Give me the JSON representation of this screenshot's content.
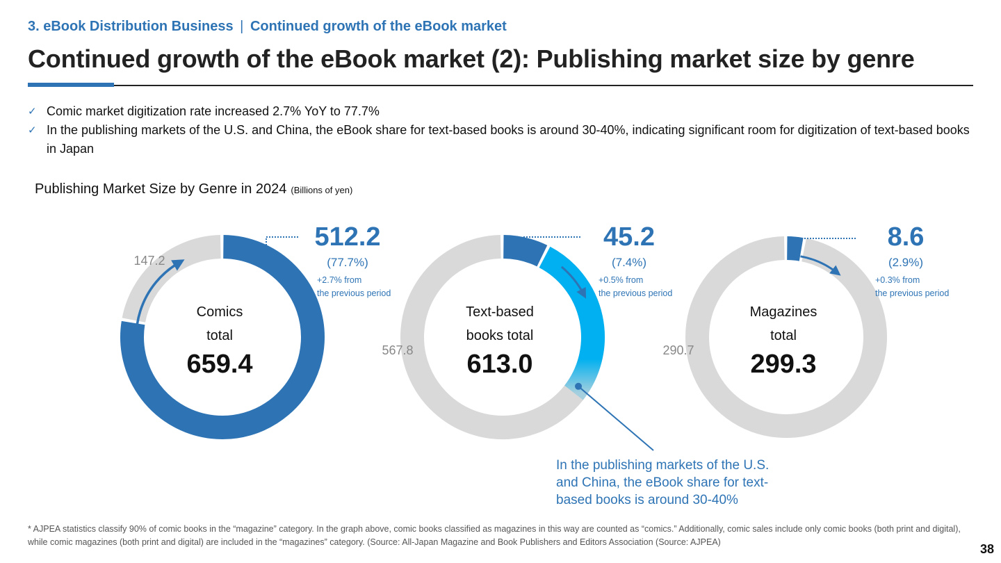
{
  "header": {
    "section": "3. eBook Distribution Business",
    "separator": "|",
    "topic": "Continued growth of the eBook market",
    "title": "Continued growth of the eBook market (2): Publishing market size by genre"
  },
  "bullets": [
    "Comic market digitization rate increased 2.7% YoY to 77.7%",
    "In the publishing markets of the U.S. and China, the eBook share for text-based books is around 30-40%, indicating significant room for digitization of text-based books in Japan"
  ],
  "bullet_mark": "✓",
  "chart_heading": {
    "title": "Publishing Market Size by Genre in 2024",
    "unit": "(Billions of yen)"
  },
  "colors": {
    "accent": "#2e74b5",
    "ring_bg": "#d9d9d9",
    "gradient_start": "#2e74b5",
    "gradient_end": "#00b0f0"
  },
  "chart_data": [
    {
      "type": "pie",
      "variant": "donut",
      "center_label": [
        "Comics",
        "total"
      ],
      "total": "659.4",
      "slices": [
        {
          "value": 512.2,
          "label": "512.2",
          "share": "(77.7%)",
          "change": [
            "+2.7% from",
            "the previous period"
          ]
        },
        {
          "value": 147.2,
          "label": "147.2"
        }
      ]
    },
    {
      "type": "pie",
      "variant": "donut",
      "center_label": [
        "Text-based",
        "books total"
      ],
      "total": "613.0",
      "slices": [
        {
          "value": 45.2,
          "label": "45.2",
          "share": "(7.4%)",
          "change": [
            "+0.5% from",
            "the previous period"
          ]
        },
        {
          "value": 567.8,
          "label": "567.8"
        }
      ],
      "callout": [
        "In the publishing markets of the U.S.",
        "and China, the eBook share for text-",
        "based books is around 30-40%"
      ]
    },
    {
      "type": "pie",
      "variant": "donut",
      "center_label": [
        "Magazines",
        "total"
      ],
      "total": "299.3",
      "slices": [
        {
          "value": 8.6,
          "label": "8.6",
          "share": "(2.9%)",
          "change": [
            "+0.3% from",
            "the previous period"
          ]
        },
        {
          "value": 290.7,
          "label": "290.7"
        }
      ]
    }
  ],
  "footnote": "* AJPEA statistics classify 90% of comic books in the “magazine” category. In the graph above, comic books classified as magazines in this way are counted as “comics.” Additionally, comic sales include only comic books (both print and digital), while comic magazines (both print and digital) are included in the “magazines” category. (Source: All-Japan Magazine and Book Publishers and Editors Association (Source: AJPEA)",
  "page_number": "38"
}
